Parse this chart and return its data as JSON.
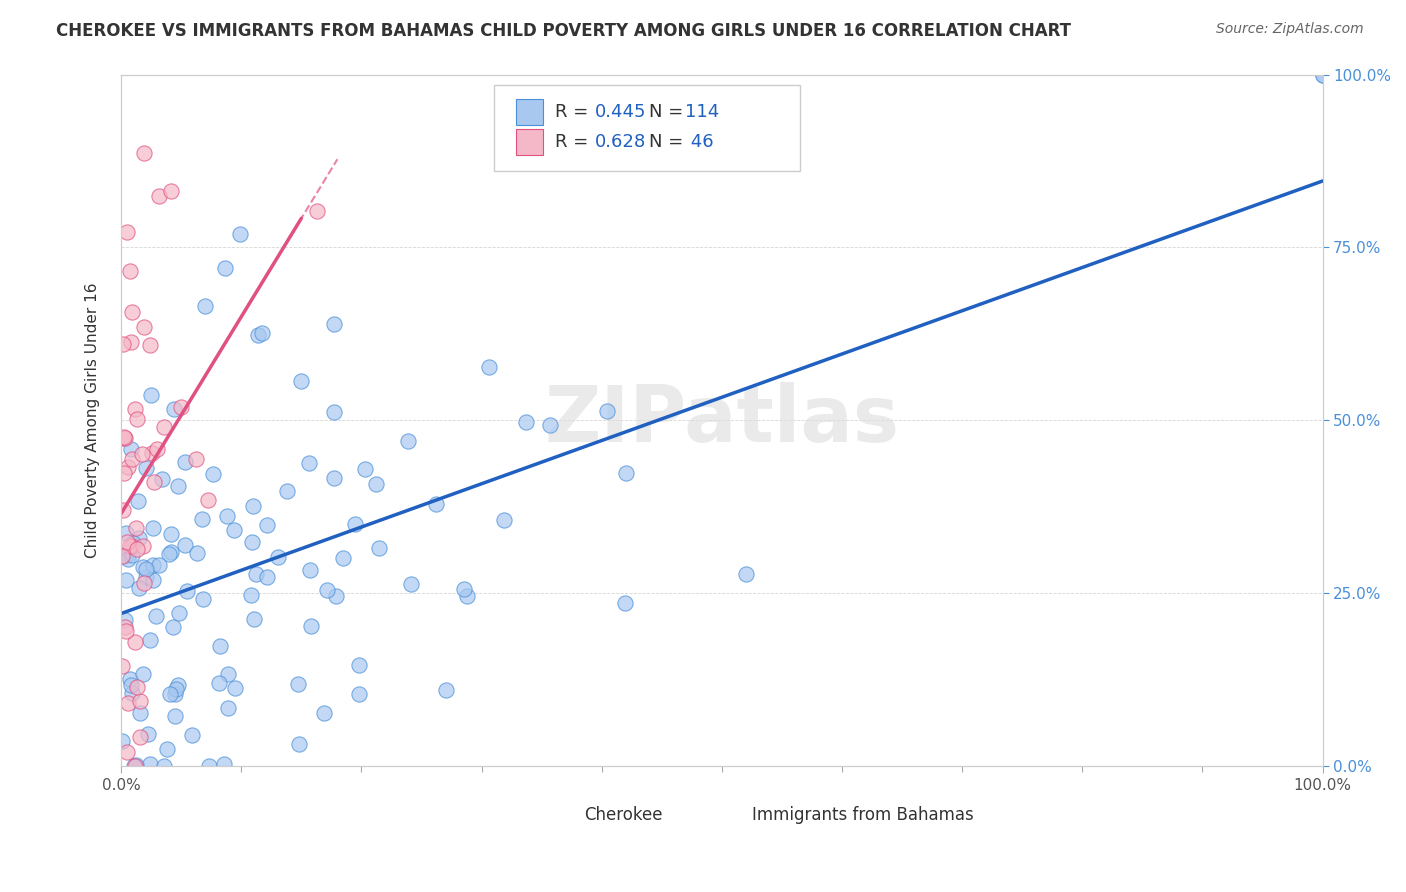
{
  "title": "CHEROKEE VS IMMIGRANTS FROM BAHAMAS CHILD POVERTY AMONG GIRLS UNDER 16 CORRELATION CHART",
  "source": "Source: ZipAtlas.com",
  "ylabel": "Child Poverty Among Girls Under 16",
  "cherokee_color": "#a8c8f0",
  "cherokee_edge_color": "#4a90d9",
  "bahamas_color": "#f5b8c8",
  "bahamas_edge_color": "#e05080",
  "cherokee_line_color": "#2060c0",
  "bahamas_line_color": "#e05080",
  "cherokee_R": 0.445,
  "cherokee_N": 114,
  "bahamas_R": 0.628,
  "bahamas_N": 46,
  "background_color": "#ffffff",
  "grid_color": "#cccccc",
  "watermark": "ZIPatlas",
  "ytick_color": "#4a90d9",
  "title_color": "#333333",
  "source_color": "#666666"
}
